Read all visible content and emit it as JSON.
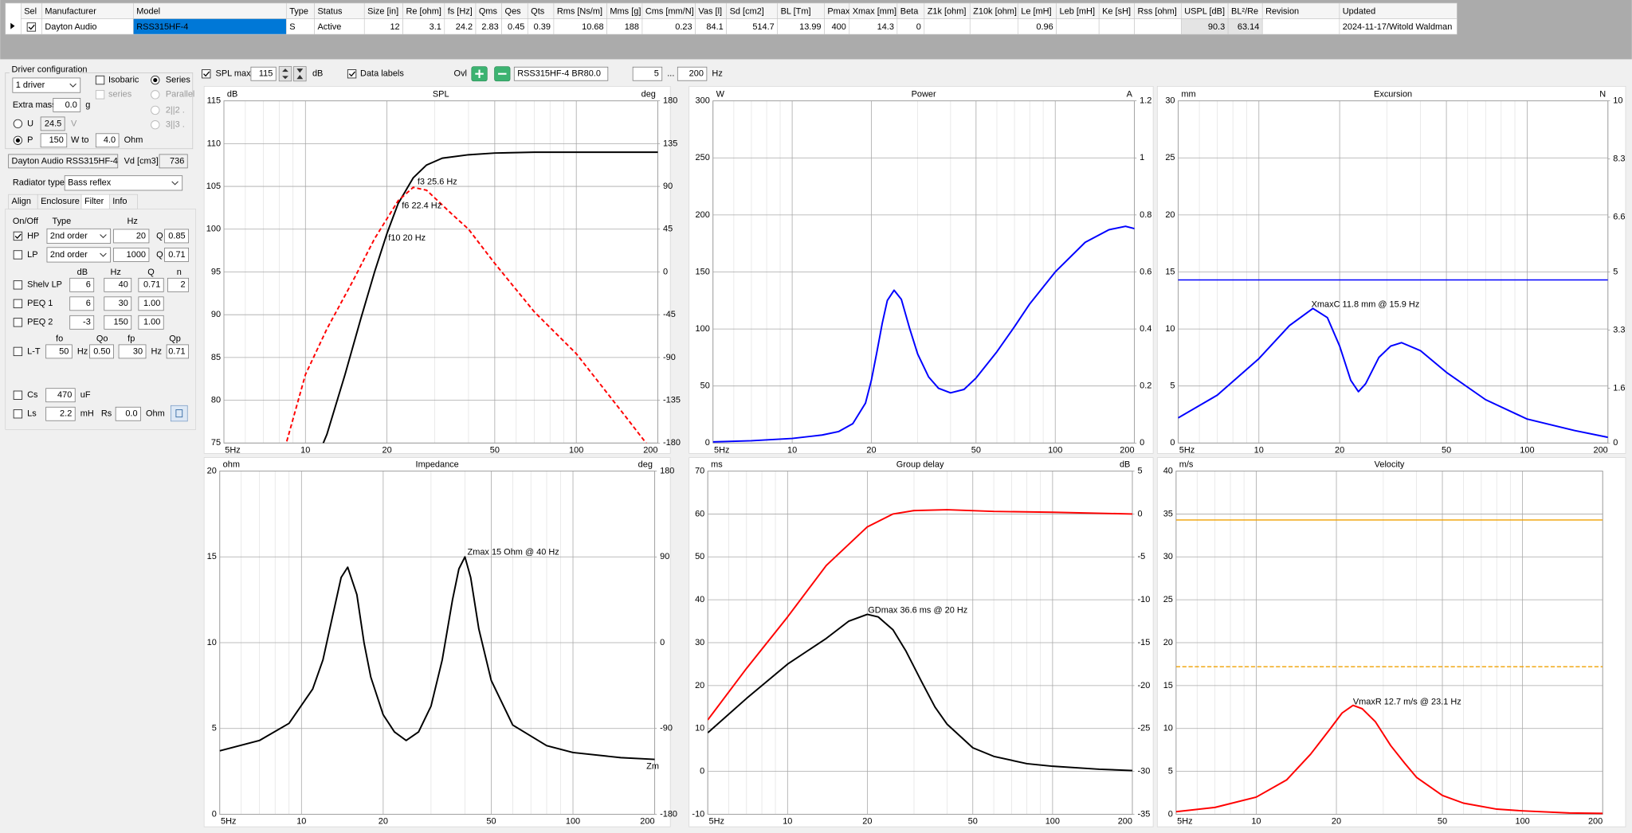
{
  "table": {
    "columns": [
      "Sel",
      "Manufacturer",
      "Model",
      "Type",
      "Status",
      "Size [in]",
      "Re [ohm]",
      "fs [Hz]",
      "Qms",
      "Qes",
      "Qts",
      "Rms [Ns/m]",
      "Mms [g]",
      "Cms [mm/N]",
      "Vas [l]",
      "Sd [cm2]",
      "BL [Tm]",
      "Pmax [W]",
      "Xmax [mm]",
      "Beta",
      "Z1k [ohm]",
      "Z10k [ohm]",
      "Le [mH]",
      "Leb [mH]",
      "Ke [sH]",
      "Rss [ohm]",
      "USPL [dB]",
      "BL²/Re",
      "Revision",
      "Updated"
    ],
    "row": [
      null,
      "Dayton Audio",
      "RSS315HF-4",
      "S",
      "Active",
      12,
      3.1,
      24.2,
      2.83,
      0.45,
      0.39,
      10.68,
      188,
      0.23,
      84.1,
      514.7,
      13.99,
      400,
      14.3,
      0,
      null,
      null,
      0.96,
      null,
      null,
      null,
      90.3,
      63.14,
      null,
      "2024-11-17/Witold Waldman"
    ]
  },
  "driver_config": {
    "title": "Driver configuration",
    "count": "1 driver",
    "isobaric": "Isobaric",
    "series": "Series",
    "series_lower": "series",
    "parallel": "Parallel",
    "p22": "2||2 .",
    "p33": "3||3 .",
    "extra_mass_label": "Extra mass",
    "extra_mass": "0.0",
    "extra_mass_unit": "g",
    "u_label": "U",
    "u_value": "24.5",
    "u_unit": "V",
    "p_label": "P",
    "p_value": "150",
    "p_unit": "W to",
    "ohm_value": "4.0",
    "ohm_unit": "Ohm",
    "driver_name": "Dayton Audio RSS315HF-4",
    "vd_label": "Vd [cm3]",
    "vd": "736",
    "radiator_label": "Radiator type",
    "radiator": "Bass reflex"
  },
  "tabs": [
    "Align",
    "Enclosure",
    "Filter",
    "Info"
  ],
  "filter": {
    "headers": [
      "On/Off",
      "Type",
      "Hz"
    ],
    "hp": {
      "label": "HP",
      "type": "2nd order",
      "hz": "20",
      "q_label": "Q",
      "q": "0.85"
    },
    "lp": {
      "label": "LP",
      "type": "2nd order",
      "hz": "1000",
      "q_label": "Q",
      "q": "0.71"
    },
    "eq_headers": [
      "dB",
      "Hz",
      "Q",
      "n"
    ],
    "shelv": {
      "label": "Shelv LP",
      "values": [
        "6",
        "40",
        "0.71",
        "2"
      ]
    },
    "peq1": {
      "label": "PEQ 1",
      "values": [
        "6",
        "30",
        "1.00"
      ]
    },
    "peq2": {
      "label": "PEQ 2",
      "values": [
        "-3",
        "150",
        "1.00"
      ]
    },
    "lt_headers": [
      "fo",
      "Qo",
      "fp",
      "Qp"
    ],
    "lt": {
      "label": "L-T",
      "fo": "50",
      "hz1": "Hz",
      "qo": "0.50",
      "fp": "30",
      "hz2": "Hz",
      "qp": "0.71"
    },
    "cs": {
      "label": "Cs",
      "value": "470",
      "unit": "uF"
    },
    "ls": {
      "label": "Ls",
      "value": "2.2",
      "unit": "mH",
      "rs_label": "Rs",
      "rs": "0.0",
      "rs_unit": "Ohm"
    }
  },
  "toolbar": {
    "spl_max_label": "SPL max",
    "spl_max": "115",
    "spl_unit": "dB",
    "data_labels": "Data labels",
    "ovl": "Ovl",
    "overlay": "RSS315HF-4 BR80.0",
    "f_min": "5",
    "dots": "...",
    "f_max": "200",
    "hz": "Hz"
  },
  "chart_data": [
    {
      "type": "line",
      "title": "SPL",
      "y_unit": "dB",
      "y2_unit": "deg",
      "xscale": "log",
      "grid": true,
      "xlim": [
        5,
        200
      ],
      "xticks": [
        {
          "value": 5,
          "label": "5Hz"
        },
        10,
        20,
        50,
        100,
        200
      ],
      "ylim": [
        75,
        115
      ],
      "yticks": [
        75,
        80,
        85,
        90,
        95,
        100,
        105,
        110,
        115
      ],
      "y2lim": [
        -180,
        180
      ],
      "y2ticks": [
        -180,
        -135,
        -90,
        -45,
        0,
        45,
        90,
        135,
        180
      ],
      "series": [
        {
          "color": "#000000",
          "x": [
            10,
            12,
            14,
            16,
            18,
            20,
            22,
            25,
            28,
            32,
            40,
            50,
            70,
            100,
            200
          ],
          "values": [
            70,
            76,
            83,
            89.5,
            95,
            99.5,
            103,
            106,
            107.5,
            108.3,
            108.7,
            108.9,
            109,
            109,
            109
          ]
        },
        {
          "color": "#ff0000",
          "dash": true,
          "axis": "y2",
          "x": [
            7.5,
            8.5,
            10,
            12,
            15,
            18,
            20,
            22,
            25,
            28,
            30,
            35,
            40,
            50,
            70,
            100,
            150,
            200
          ],
          "values": [
            -210,
            -180,
            -108,
            -60,
            -9,
            35,
            56,
            75,
            89,
            86,
            78,
            60,
            45,
            9,
            -42,
            -86,
            -150,
            -196
          ]
        }
      ],
      "annotations": [
        "f3 25.6 Hz",
        "f6 22.4 Hz",
        "f10 20 Hz"
      ]
    },
    {
      "type": "line",
      "title": "Power",
      "y_unit": "W",
      "y2_unit": "A",
      "xscale": "log",
      "grid": true,
      "xlim": [
        5,
        200
      ],
      "xticks": [
        {
          "value": 5,
          "label": "5Hz"
        },
        10,
        20,
        50,
        100,
        200
      ],
      "ylim": [
        0,
        300
      ],
      "yticks": [
        0,
        50,
        100,
        150,
        200,
        250,
        300
      ],
      "y2lim": [
        0,
        1.2
      ],
      "y2ticks": [
        0,
        0.2,
        0.4,
        0.6,
        0.8,
        1,
        1.2
      ],
      "series": [
        {
          "color": "#0000ff",
          "x": [
            5,
            7,
            10,
            13,
            15,
            17,
            19,
            20,
            21,
            22,
            23,
            24.4,
            26,
            28,
            30,
            33,
            36,
            40,
            45,
            50,
            60,
            70,
            80,
            100,
            130,
            160,
            185,
            200
          ],
          "values": [
            1,
            2,
            4,
            7,
            10,
            17,
            35,
            55,
            80,
            105,
            125,
            134,
            126,
            100,
            78,
            58,
            48,
            44,
            47,
            57,
            80,
            102,
            122,
            150,
            176,
            187,
            190,
            188
          ]
        }
      ]
    },
    {
      "type": "line",
      "title": "Excursion",
      "y_unit": "mm",
      "y2_unit": "N",
      "xscale": "log",
      "grid": true,
      "xlim": [
        5,
        200
      ],
      "xticks": [
        {
          "value": 5,
          "label": "5Hz"
        },
        10,
        20,
        50,
        100,
        200
      ],
      "ylim": [
        0,
        30
      ],
      "yticks": [
        0,
        5,
        10,
        15,
        20,
        25,
        30
      ],
      "y2lim": [
        0,
        10
      ],
      "y2ticks": [
        0,
        1.6,
        3.3,
        5,
        6.6,
        8.3,
        10
      ],
      "hlines": [
        {
          "value": 14.3,
          "color": "#0000ff"
        }
      ],
      "series": [
        {
          "color": "#0000ff",
          "x": [
            5,
            7,
            10,
            13,
            15.9,
            18,
            20,
            22,
            23.5,
            25,
            28,
            31,
            34,
            40,
            50,
            70,
            100,
            150,
            200
          ],
          "values": [
            2.2,
            4.2,
            7.4,
            10.3,
            11.8,
            11,
            8.5,
            5.5,
            4.5,
            5.2,
            7.5,
            8.5,
            8.8,
            8.1,
            6.2,
            3.8,
            2.1,
            1.1,
            0.5
          ]
        }
      ],
      "annotations": [
        "XmaxC 11.8 mm  @ 15.9 Hz"
      ]
    },
    {
      "type": "line",
      "title": "Impedance",
      "y_unit": "ohm",
      "y2_unit": "deg",
      "xscale": "log",
      "grid": true,
      "xlim": [
        5,
        200
      ],
      "xticks": [
        {
          "value": 5,
          "label": "5Hz"
        },
        10,
        20,
        50,
        100,
        200
      ],
      "ylim": [
        0,
        20
      ],
      "yticks": [
        0,
        5,
        10,
        15,
        20
      ],
      "y2lim": [
        -180,
        180
      ],
      "y2ticks": [
        -180,
        -90,
        0,
        90,
        180
      ],
      "series": [
        {
          "color": "#000000",
          "x": [
            5,
            7,
            9,
            11,
            12,
            13,
            14,
            14.8,
            16,
            17,
            18,
            20,
            22,
            24.3,
            27,
            30,
            33,
            36,
            38,
            40,
            42,
            45,
            50,
            60,
            80,
            100,
            150,
            200
          ],
          "values": [
            3.7,
            4.3,
            5.3,
            7.3,
            9,
            11.5,
            13.8,
            14.4,
            12.8,
            10,
            8,
            5.8,
            4.8,
            4.3,
            4.8,
            6.3,
            9,
            12.5,
            14.3,
            15,
            13.8,
            10.8,
            7.8,
            5.2,
            4,
            3.6,
            3.3,
            3.2
          ]
        }
      ],
      "annotations": [
        "Zmax 15 Ohm @ 40 Hz",
        "Zm"
      ]
    },
    {
      "type": "line",
      "title": "Group delay",
      "y_unit": "ms",
      "y2_unit": "dB",
      "xscale": "log",
      "grid": true,
      "xlim": [
        5,
        200
      ],
      "xticks": [
        {
          "value": 5,
          "label": "5Hz"
        },
        10,
        20,
        50,
        100,
        200
      ],
      "ylim": [
        -10,
        70
      ],
      "yticks": [
        -10,
        0,
        10,
        20,
        30,
        40,
        50,
        60,
        70
      ],
      "y2lim": [
        -35,
        5
      ],
      "y2ticks": [
        -35,
        -30,
        -25,
        -20,
        -15,
        -10,
        -5,
        0,
        5
      ],
      "series": [
        {
          "color": "#000000",
          "x": [
            5,
            7,
            10,
            14,
            17,
            20,
            22,
            25,
            28,
            32,
            36,
            40,
            50,
            60,
            80,
            100,
            150,
            200
          ],
          "values": [
            9,
            17,
            25,
            31,
            35,
            36.6,
            36,
            33,
            28,
            21,
            15,
            11,
            5.5,
            3.5,
            1.8,
            1.2,
            0.5,
            0.2
          ]
        },
        {
          "color": "#ff0000",
          "axis": "y2",
          "x": [
            5,
            7,
            10,
            14,
            20,
            25,
            30,
            40,
            60,
            100,
            200
          ],
          "values": [
            -24,
            -18,
            -12,
            -6,
            -1.5,
            0,
            0.4,
            0.5,
            0.3,
            0.2,
            0
          ]
        }
      ],
      "annotations": [
        "GDmax 36.6 ms  @ 20 Hz"
      ]
    },
    {
      "type": "line",
      "title": "Velocity",
      "y_unit": "m/s",
      "xscale": "log",
      "grid": true,
      "xlim": [
        5,
        200
      ],
      "xticks": [
        {
          "value": 5,
          "label": "5Hz"
        },
        10,
        20,
        50,
        100,
        200
      ],
      "ylim": [
        0,
        40
      ],
      "yticks": [
        0,
        5,
        10,
        15,
        20,
        25,
        30,
        35,
        40
      ],
      "hlines": [
        {
          "value": 34.3,
          "color": "#f0a000"
        },
        {
          "value": 17.2,
          "color": "#f0a000",
          "dash": true
        }
      ],
      "series": [
        {
          "color": "#ff0000",
          "x": [
            5,
            7,
            10,
            13,
            16,
            19,
            21,
            23.1,
            25,
            28,
            32,
            36,
            40,
            50,
            60,
            80,
            100,
            150,
            200
          ],
          "values": [
            0.3,
            0.8,
            2,
            4,
            7,
            10,
            11.8,
            12.7,
            12.3,
            10.8,
            8,
            6,
            4.3,
            2.2,
            1.3,
            0.6,
            0.4,
            0.15,
            0.1
          ]
        }
      ],
      "annotations": [
        "VmaxR 12.7 m/s @ 23.1 Hz"
      ]
    }
  ]
}
